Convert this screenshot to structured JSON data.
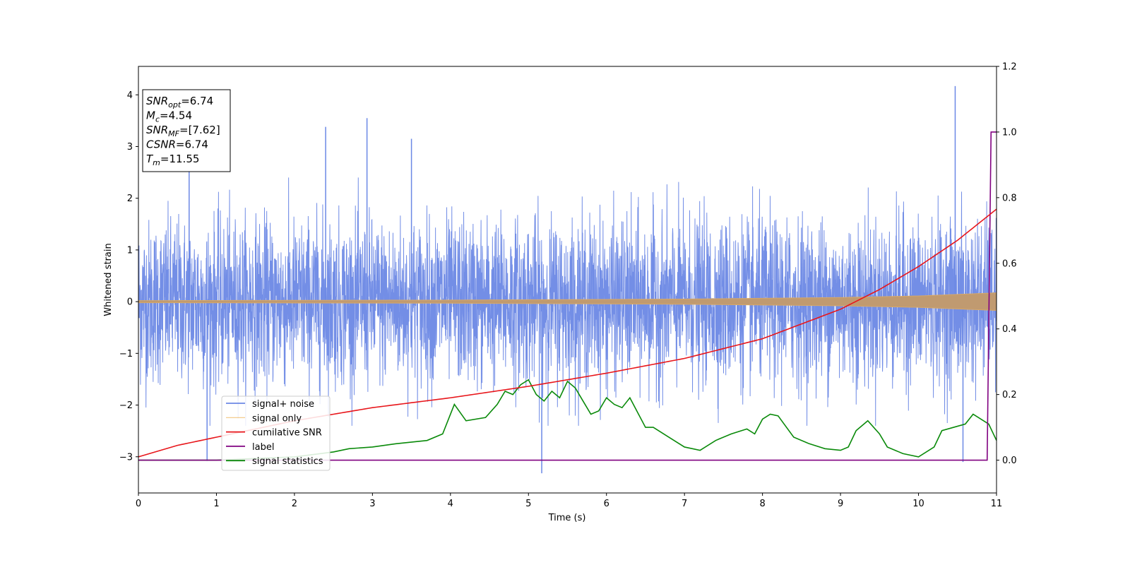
{
  "chart_data": {
    "type": "line",
    "xlabel": "Time (s)",
    "ylabel": "Whitened strain",
    "xlim": [
      0,
      11
    ],
    "ylim": [
      -3.7,
      4.55
    ],
    "y2lim": [
      -0.1,
      1.2
    ],
    "xticks": [
      "0",
      "1",
      "2",
      "3",
      "4",
      "5",
      "6",
      "7",
      "8",
      "9",
      "10",
      "11"
    ],
    "yticks": [
      "−3",
      "−2",
      "−1",
      "0",
      "1",
      "2",
      "3",
      "4"
    ],
    "y2ticks": [
      "0.0",
      "0.2",
      "0.4",
      "0.6",
      "0.8",
      "1.0",
      "1.2"
    ],
    "grid": false,
    "legend_position": "lower-left",
    "textbox": [
      {
        "base": "SNR",
        "sub": "opt",
        "rest": "=6.74"
      },
      {
        "base": "M",
        "sub": "c",
        "rest": "=4.54"
      },
      {
        "base": "SNR",
        "sub": "MF",
        "rest": "=[7.62]"
      },
      {
        "base": "CSNR",
        "sub": "",
        "rest": "=6.74"
      },
      {
        "base": "T",
        "sub": "m",
        "rest": "=11.55"
      }
    ],
    "series": [
      {
        "name": "signal+ noise",
        "color": "#6b88e5",
        "axis": "left",
        "description_values": {
          "noise_band": [
            -1.8,
            2.2
          ],
          "notable_spikes": [
            [
              0.65,
              2.6
            ],
            [
              2.4,
              3.38
            ],
            [
              2.93,
              3.55
            ],
            [
              3.5,
              3.15
            ],
            [
              5.17,
              -3.32
            ],
            [
              10.47,
              4.17
            ],
            [
              10.57,
              -3.1
            ],
            [
              0.88,
              -3.08
            ]
          ]
        }
      },
      {
        "name": "signal only",
        "color": "#f0b860",
        "axis": "left",
        "envelope": {
          "x": [
            0,
            4,
            7,
            9,
            10,
            11
          ],
          "amp": [
            0.02,
            0.03,
            0.05,
            0.08,
            0.11,
            0.17
          ]
        }
      },
      {
        "name": "cumilative SNR",
        "color": "#e8161b",
        "axis": "right",
        "x": [
          0,
          0.5,
          1,
          2,
          3,
          4,
          5,
          6,
          7,
          8,
          9,
          9.5,
          10,
          10.5,
          11
        ],
        "y": [
          0.01,
          0.045,
          0.07,
          0.12,
          0.16,
          0.19,
          0.225,
          0.265,
          0.31,
          0.37,
          0.46,
          0.52,
          0.59,
          0.67,
          0.765
        ]
      },
      {
        "name": "label",
        "color": "#800080",
        "axis": "right",
        "x": [
          0,
          10.88,
          10.93,
          11
        ],
        "y": [
          0,
          0,
          1,
          1
        ]
      },
      {
        "name": "signal statistics",
        "color": "#0a8a0a",
        "axis": "right",
        "x": [
          0,
          1,
          2,
          2.5,
          2.7,
          3.0,
          3.3,
          3.7,
          3.9,
          4.05,
          4.2,
          4.45,
          4.6,
          4.7,
          4.8,
          4.9,
          5.0,
          5.1,
          5.2,
          5.3,
          5.4,
          5.5,
          5.6,
          5.7,
          5.8,
          5.9,
          6.0,
          6.1,
          6.2,
          6.3,
          6.5,
          6.6,
          6.8,
          7.0,
          7.2,
          7.4,
          7.6,
          7.8,
          7.9,
          8.0,
          8.1,
          8.2,
          8.4,
          8.6,
          8.8,
          9.0,
          9.1,
          9.2,
          9.35,
          9.5,
          9.6,
          9.8,
          10.0,
          10.2,
          10.3,
          10.45,
          10.6,
          10.7,
          10.9,
          11.0
        ],
        "y": [
          0.0,
          0.0,
          0.01,
          0.025,
          0.035,
          0.04,
          0.05,
          0.06,
          0.08,
          0.17,
          0.12,
          0.13,
          0.17,
          0.21,
          0.2,
          0.23,
          0.245,
          0.2,
          0.18,
          0.21,
          0.19,
          0.24,
          0.22,
          0.18,
          0.14,
          0.15,
          0.19,
          0.17,
          0.16,
          0.19,
          0.1,
          0.1,
          0.07,
          0.04,
          0.03,
          0.06,
          0.08,
          0.095,
          0.08,
          0.125,
          0.14,
          0.135,
          0.07,
          0.05,
          0.035,
          0.03,
          0.04,
          0.09,
          0.12,
          0.08,
          0.04,
          0.02,
          0.01,
          0.04,
          0.09,
          0.1,
          0.11,
          0.14,
          0.11,
          0.06
        ]
      }
    ]
  }
}
